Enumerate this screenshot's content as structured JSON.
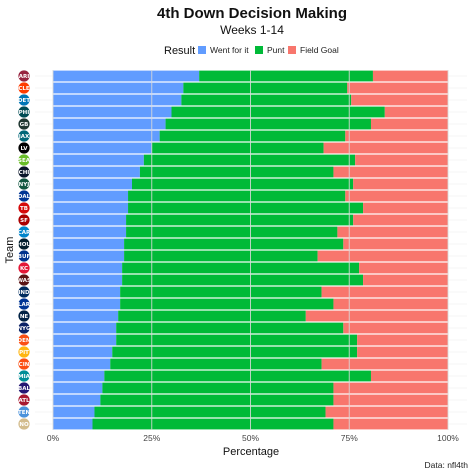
{
  "chart_data": {
    "type": "bar",
    "orientation": "horizontal",
    "stacked": true,
    "title": "4th Down Decision Making",
    "subtitle": "Weeks 1-14",
    "xlabel": "Percentage",
    "ylabel": "Team",
    "xlim": [
      0,
      100
    ],
    "x_ticks": [
      0,
      25,
      50,
      75,
      100
    ],
    "x_tick_labels": [
      "0%",
      "25%",
      "50%",
      "75%",
      "100%"
    ],
    "grid": true,
    "legend": {
      "title": "Result",
      "position": "top",
      "entries": [
        {
          "label": "Went for it",
          "color": "#619CFF"
        },
        {
          "label": "Punt",
          "color": "#00BA38"
        },
        {
          "label": "Field Goal",
          "color": "#F8766D"
        }
      ]
    },
    "caption": "Data: nfl4th",
    "categories": [
      "ARI",
      "CLE",
      "DET",
      "PHI",
      "GB",
      "JAX",
      "LV",
      "SEA",
      "CHI",
      "NYJ",
      "DAL",
      "TB",
      "SF",
      "CAR",
      "HOU",
      "BUF",
      "KC",
      "WAS",
      "IND",
      "LAR",
      "NE",
      "NYG",
      "DEN",
      "PIT",
      "CIN",
      "MIA",
      "BAL",
      "ATL",
      "TEN",
      "NO"
    ],
    "team_colors": [
      "#97233F",
      "#FF3C00",
      "#0076B6",
      "#004C54",
      "#203731",
      "#006778",
      "#000000",
      "#69BE28",
      "#0B162A",
      "#125740",
      "#003594",
      "#D50A0A",
      "#AA0000",
      "#0085CA",
      "#03202F",
      "#00338D",
      "#E31837",
      "#5A1414",
      "#002C5F",
      "#003594",
      "#002244",
      "#0B2265",
      "#FB4F14",
      "#FFB612",
      "#FB4F14",
      "#008E97",
      "#241773",
      "#A71930",
      "#4B92DB",
      "#D3BC8D"
    ],
    "series": [
      {
        "name": "Went for it",
        "color": "#619CFF",
        "values": [
          37,
          33,
          32.5,
          30,
          28.5,
          27,
          25,
          23,
          22,
          20,
          19,
          19,
          18.5,
          18.5,
          18,
          18,
          17.5,
          17.5,
          17,
          17,
          16.5,
          16,
          16,
          15,
          14.5,
          13,
          12.5,
          12,
          10.5,
          10
        ]
      },
      {
        "name": "Punt",
        "color": "#00BA38",
        "values": [
          44,
          41.5,
          43,
          54,
          52,
          47,
          43.5,
          53.5,
          49,
          56,
          55,
          59.5,
          57.5,
          53.5,
          55.5,
          49,
          60,
          61,
          51,
          54,
          47.5,
          57.5,
          61,
          62,
          53.5,
          67.5,
          58.5,
          59,
          58.5,
          61
        ]
      },
      {
        "name": "Field Goal",
        "color": "#F8766D",
        "values": [
          19,
          25.5,
          24.5,
          16,
          19.5,
          26,
          31.5,
          23.5,
          29,
          24,
          26,
          21.5,
          24,
          28,
          26.5,
          33,
          22.5,
          21.5,
          32,
          29,
          36,
          26.5,
          23,
          23,
          32,
          19.5,
          29,
          29,
          31,
          29
        ]
      }
    ]
  }
}
